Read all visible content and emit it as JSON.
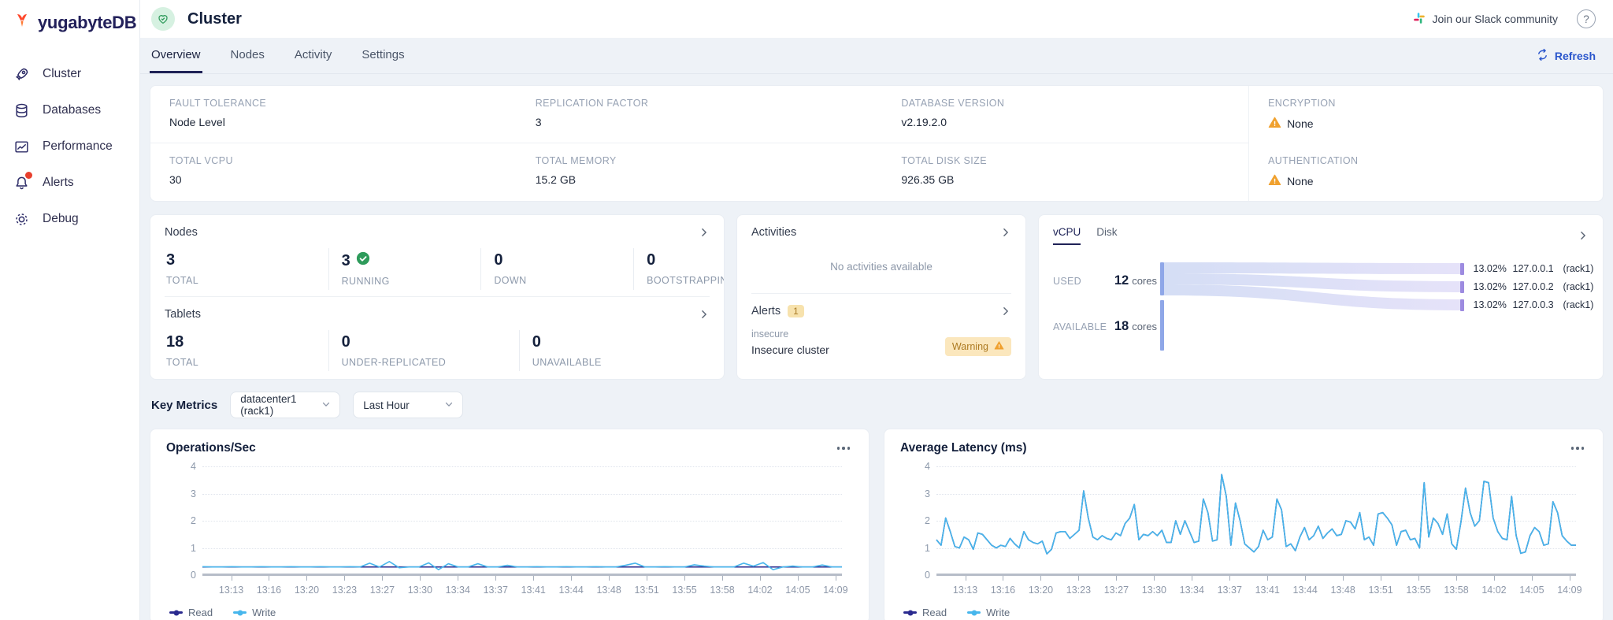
{
  "brand": {
    "logo_text": "yugabyteDB"
  },
  "sidebar": {
    "items": [
      {
        "label": "Cluster",
        "icon": "rocket",
        "badge": false
      },
      {
        "label": "Databases",
        "icon": "database",
        "badge": false
      },
      {
        "label": "Performance",
        "icon": "performance",
        "badge": false
      },
      {
        "label": "Alerts",
        "icon": "bell",
        "badge": true
      },
      {
        "label": "Debug",
        "icon": "gear",
        "badge": false
      }
    ]
  },
  "header": {
    "title": "Cluster",
    "slack_label": "Join our Slack community",
    "help_label": "?"
  },
  "tabs": {
    "items": [
      "Overview",
      "Nodes",
      "Activity",
      "Settings"
    ],
    "active": "Overview",
    "refresh_label": "Refresh"
  },
  "cluster_info": {
    "rows": [
      [
        {
          "label": "FAULT TOLERANCE",
          "value": "Node Level",
          "warning": false
        },
        {
          "label": "REPLICATION FACTOR",
          "value": "3",
          "warning": false
        },
        {
          "label": "DATABASE VERSION",
          "value": "v2.19.2.0",
          "warning": false
        },
        {
          "label": "ENCRYPTION",
          "value": "None",
          "warning": true
        }
      ],
      [
        {
          "label": "TOTAL VCPU",
          "value": "30",
          "warning": false
        },
        {
          "label": "TOTAL MEMORY",
          "value": "15.2 GB",
          "warning": false
        },
        {
          "label": "TOTAL DISK SIZE",
          "value": "926.35 GB",
          "warning": false
        },
        {
          "label": "AUTHENTICATION",
          "value": "None",
          "warning": true
        }
      ]
    ]
  },
  "nodes_panel": {
    "title": "Nodes",
    "stats": [
      {
        "value": "3",
        "label": "TOTAL",
        "check": false
      },
      {
        "value": "3",
        "label": "RUNNING",
        "check": true
      },
      {
        "value": "0",
        "label": "DOWN",
        "check": false
      },
      {
        "value": "0",
        "label": "BOOTSTRAPPING",
        "check": false
      }
    ]
  },
  "tablets_panel": {
    "title": "Tablets",
    "stats": [
      {
        "value": "18",
        "label": "TOTAL",
        "check": false
      },
      {
        "value": "0",
        "label": "UNDER-REPLICATED",
        "check": false
      },
      {
        "value": "0",
        "label": "UNAVAILABLE",
        "check": false
      }
    ]
  },
  "activities_panel": {
    "title": "Activities",
    "empty_text": "No activities available"
  },
  "alerts_panel": {
    "title": "Alerts",
    "count": "1",
    "alert_name": "insecure",
    "alert_desc": "Insecure cluster",
    "badge_label": "Warning"
  },
  "usage_panel": {
    "tabs": [
      "vCPU",
      "Disk"
    ],
    "active_tab": "vCPU",
    "used_label": "USED",
    "used_value": "12",
    "used_unit": "cores",
    "available_label": "AVAILABLE",
    "available_value": "18",
    "available_unit": "cores",
    "nodes": [
      {
        "pct": "13.02%",
        "ip": "127.0.0.1",
        "zone": "(rack1)"
      },
      {
        "pct": "13.02%",
        "ip": "127.0.0.2",
        "zone": "(rack1)"
      },
      {
        "pct": "13.02%",
        "ip": "127.0.0.3",
        "zone": "(rack1)"
      }
    ]
  },
  "key_metrics": {
    "label": "Key Metrics",
    "region_value": "datacenter1 (rack1)",
    "time_value": "Last Hour"
  },
  "colors": {
    "accent_blue": "#2a56cc",
    "navy": "#22205a",
    "green": "#2e9b5b",
    "warning_orange": "#f0a12f",
    "read_line": "#2b2b8f",
    "write_line": "#47b6ec"
  },
  "chart_data": [
    {
      "type": "line",
      "title": "Operations/Sec",
      "ylim": [
        0,
        4
      ],
      "yticks": [
        0,
        1,
        2,
        3,
        4
      ],
      "grid": "dotted",
      "legend_position": "bottom",
      "x_ticks": [
        "13:13",
        "13:16",
        "13:20",
        "13:23",
        "13:27",
        "13:30",
        "13:34",
        "13:37",
        "13:41",
        "13:44",
        "13:48",
        "13:51",
        "13:55",
        "13:58",
        "14:02",
        "14:05",
        "14:09"
      ],
      "series": [
        {
          "name": "Read",
          "color": "#2b2b8f",
          "values": [
            0.3,
            0.3,
            0.3,
            0.3,
            0.3,
            0.3,
            0.3,
            0.3,
            0.3,
            0.3,
            0.3,
            0.3,
            0.3,
            0.3,
            0.3,
            0.3,
            0.3,
            0.3,
            0.3,
            0.3,
            0.3,
            0.3,
            0.3,
            0.3,
            0.3,
            0.3,
            0.3,
            0.3,
            0.3,
            0.3,
            0.3,
            0.3,
            0.3,
            0.3,
            0.3,
            0.3,
            0.3,
            0.3,
            0.3,
            0.3,
            0.3,
            0.3,
            0.3,
            0.3,
            0.3,
            0.3,
            0.3,
            0.3,
            0.3,
            0.3,
            0.3,
            0.3,
            0.3,
            0.3,
            0.3,
            0.3,
            0.3,
            0.3,
            0.3,
            0.3,
            0.3,
            0.3,
            0.3,
            0.3,
            0.3,
            0.3
          ]
        },
        {
          "name": "Write",
          "color": "#47b6ec",
          "values": [
            0.31,
            0.3,
            0.3,
            0.31,
            0.3,
            0.3,
            0.31,
            0.3,
            0.3,
            0.31,
            0.3,
            0.3,
            0.31,
            0.3,
            0.3,
            0.31,
            0.3,
            0.44,
            0.3,
            0.5,
            0.27,
            0.3,
            0.3,
            0.45,
            0.2,
            0.42,
            0.3,
            0.3,
            0.42,
            0.3,
            0.3,
            0.36,
            0.3,
            0.3,
            0.31,
            0.3,
            0.3,
            0.31,
            0.3,
            0.3,
            0.31,
            0.3,
            0.3,
            0.36,
            0.44,
            0.3,
            0.3,
            0.31,
            0.3,
            0.3,
            0.38,
            0.33,
            0.3,
            0.3,
            0.3,
            0.44,
            0.33,
            0.46,
            0.2,
            0.3,
            0.33,
            0.3,
            0.3,
            0.37,
            0.3,
            0.3
          ]
        }
      ]
    },
    {
      "type": "line",
      "title": "Average Latency (ms)",
      "ylim": [
        0,
        4
      ],
      "yticks": [
        0,
        1,
        2,
        3,
        4
      ],
      "grid": "dotted",
      "legend_position": "bottom",
      "x_ticks": [
        "13:13",
        "13:16",
        "13:20",
        "13:23",
        "13:27",
        "13:30",
        "13:34",
        "13:37",
        "13:41",
        "13:44",
        "13:48",
        "13:51",
        "13:55",
        "13:58",
        "14:02",
        "14:05",
        "14:09"
      ],
      "series": [
        {
          "name": "Read",
          "color": "#2b2b8f",
          "values": [
            1.3,
            1.1,
            2.1,
            1.6,
            1.05,
            1.0,
            1.4,
            1.3,
            0.95,
            1.55,
            1.5,
            1.3,
            1.1,
            1.0,
            1.1,
            1.05,
            1.35,
            1.15,
            1.0,
            1.6,
            1.3,
            1.2,
            1.15,
            1.25,
            0.78,
            0.95,
            1.55,
            1.6,
            1.6,
            1.35,
            1.5,
            1.65,
            3.1,
            2.1,
            1.4,
            1.3,
            1.45,
            1.35,
            1.3,
            1.55,
            1.45,
            1.9,
            2.1,
            2.6,
            1.3,
            1.5,
            1.45,
            1.6,
            1.45,
            1.65,
            1.2,
            1.2,
            2.0,
            1.5,
            2.0,
            1.6,
            1.2,
            1.25,
            2.8,
            2.3,
            1.25,
            1.3,
            3.7,
            2.9,
            1.1,
            2.65,
            2.0,
            1.15,
            1.0,
            0.85,
            1.05,
            1.65,
            1.3,
            1.4,
            2.8,
            2.4,
            1.05,
            1.15,
            0.9,
            1.4,
            1.75,
            1.3,
            1.45,
            1.8,
            1.35,
            1.55,
            1.7,
            1.45,
            1.5,
            2.0,
            1.95,
            1.7,
            2.3,
            1.3,
            1.4,
            1.1,
            2.25,
            2.3,
            2.1,
            1.85,
            1.1,
            1.6,
            1.65,
            1.3,
            1.35,
            1.0,
            3.4,
            1.4,
            2.1,
            1.9,
            1.5,
            2.25,
            1.15,
            0.95,
            1.95,
            3.2,
            2.3,
            1.8,
            2.0,
            3.45,
            3.4,
            2.1,
            1.6,
            1.35,
            1.3,
            2.9,
            1.45,
            0.8,
            0.85,
            1.45,
            1.75,
            1.6,
            1.1,
            1.15,
            2.7,
            2.3,
            1.45,
            1.25,
            1.1,
            1.1
          ]
        },
        {
          "name": "Write",
          "color": "#47b6ec",
          "values": [
            1.3,
            1.1,
            2.1,
            1.6,
            1.05,
            1.0,
            1.4,
            1.3,
            0.95,
            1.55,
            1.5,
            1.3,
            1.1,
            1.0,
            1.1,
            1.05,
            1.35,
            1.15,
            1.0,
            1.6,
            1.3,
            1.2,
            1.15,
            1.25,
            0.78,
            0.95,
            1.55,
            1.6,
            1.6,
            1.35,
            1.5,
            1.65,
            3.1,
            2.1,
            1.4,
            1.3,
            1.45,
            1.35,
            1.3,
            1.55,
            1.45,
            1.9,
            2.1,
            2.6,
            1.3,
            1.5,
            1.45,
            1.6,
            1.45,
            1.65,
            1.2,
            1.2,
            2.0,
            1.5,
            2.0,
            1.6,
            1.2,
            1.25,
            2.8,
            2.3,
            1.25,
            1.3,
            3.7,
            2.9,
            1.1,
            2.65,
            2.0,
            1.15,
            1.0,
            0.85,
            1.05,
            1.65,
            1.3,
            1.4,
            2.8,
            2.4,
            1.05,
            1.15,
            0.9,
            1.4,
            1.75,
            1.3,
            1.45,
            1.8,
            1.35,
            1.55,
            1.7,
            1.45,
            1.5,
            2.0,
            1.95,
            1.7,
            2.3,
            1.3,
            1.4,
            1.1,
            2.25,
            2.3,
            2.1,
            1.85,
            1.1,
            1.6,
            1.65,
            1.3,
            1.35,
            1.0,
            3.4,
            1.4,
            2.1,
            1.9,
            1.5,
            2.25,
            1.15,
            0.95,
            1.95,
            3.2,
            2.3,
            1.8,
            2.0,
            3.45,
            3.4,
            2.1,
            1.6,
            1.35,
            1.3,
            2.9,
            1.45,
            0.8,
            0.85,
            1.45,
            1.75,
            1.6,
            1.1,
            1.15,
            2.7,
            2.3,
            1.45,
            1.25,
            1.1,
            1.1
          ]
        }
      ]
    }
  ]
}
